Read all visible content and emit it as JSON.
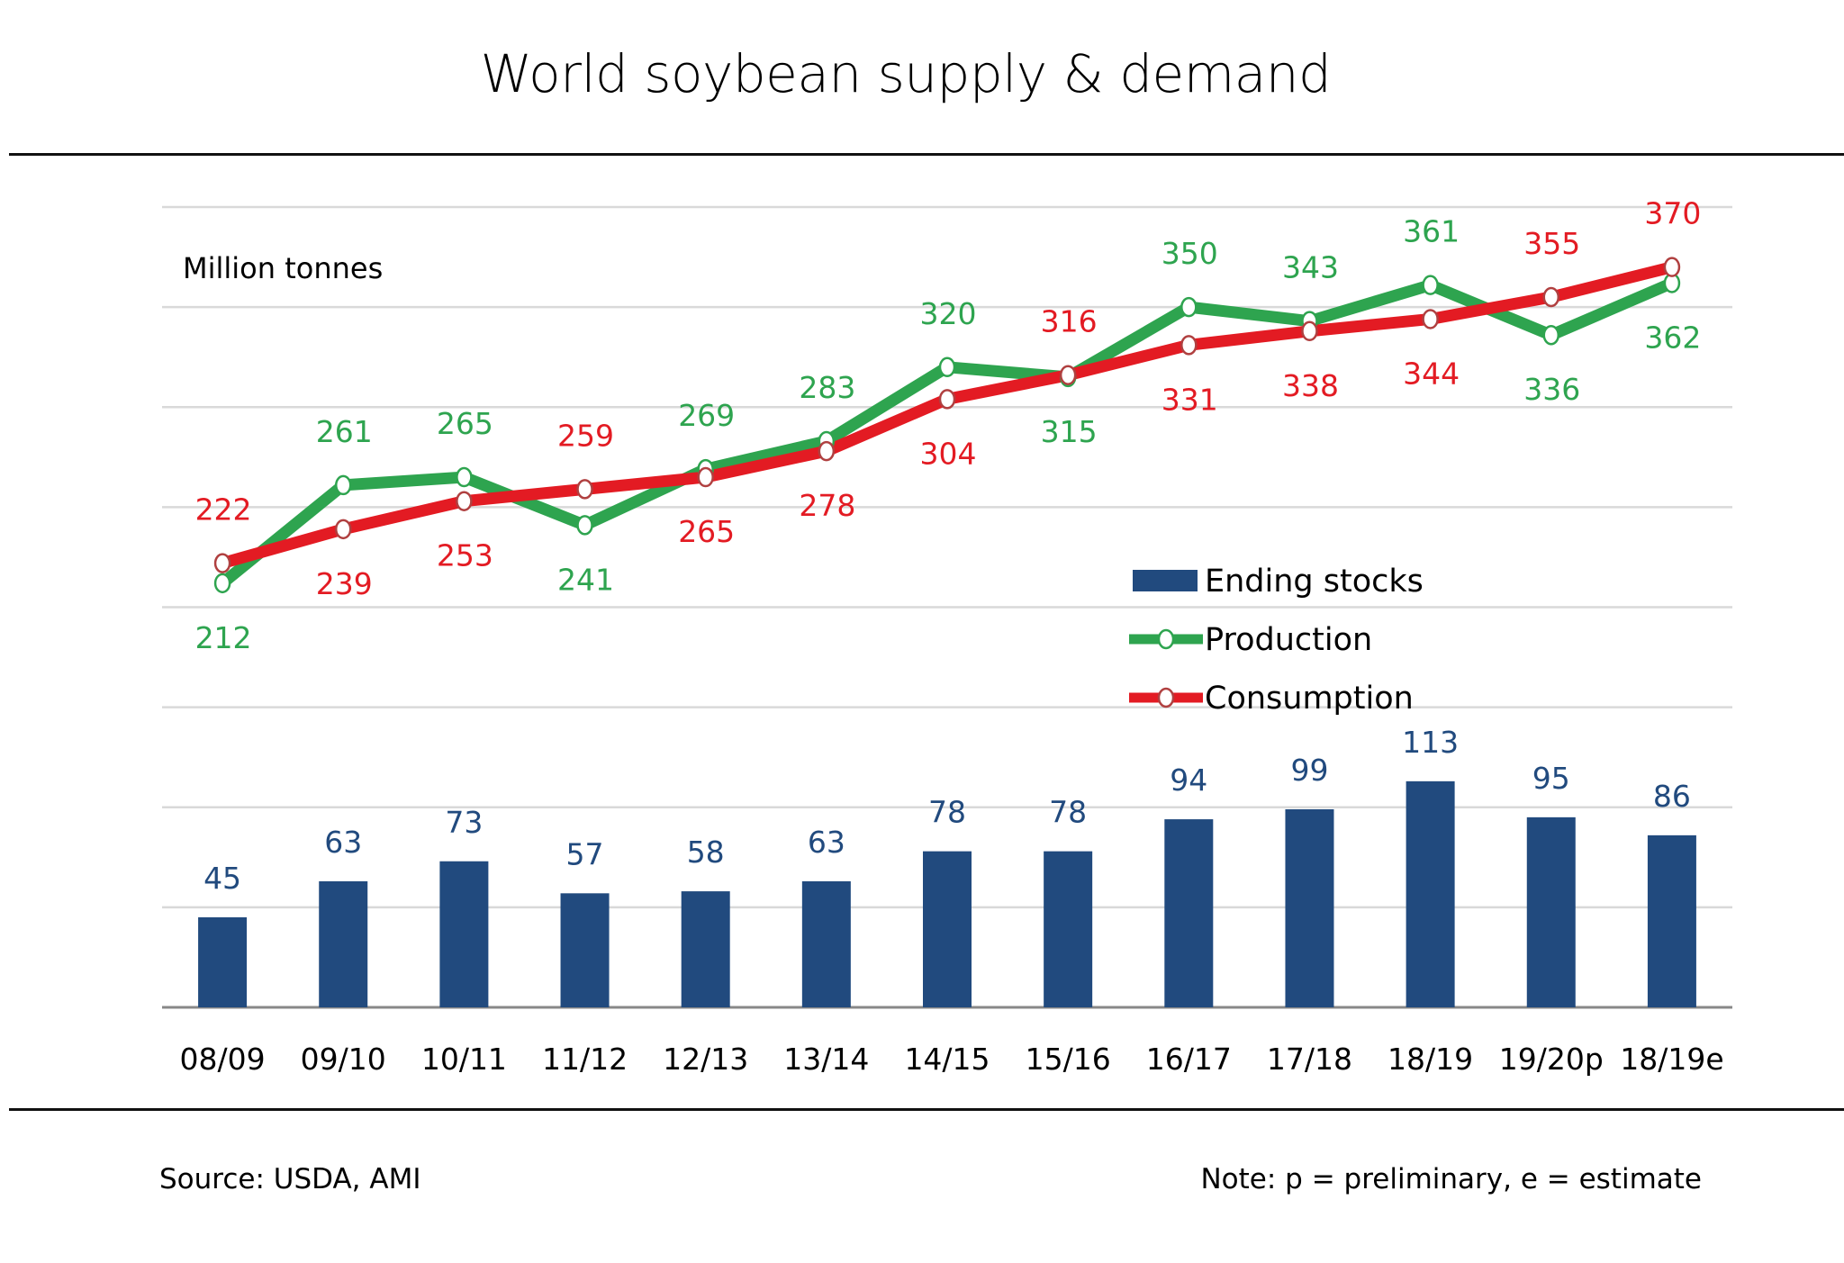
{
  "title": "World soybean supply & demand",
  "footer": {
    "source": "Source: USDA, AMI",
    "note": "Note: p = preliminary, e = estimate"
  },
  "colors": {
    "bars": "#214a7e",
    "production": "#2ea44f",
    "consumption": "#e31b23",
    "consumption_marker": "#b04040",
    "grid": "#d9d9d9",
    "axis": "#888888"
  },
  "chart_data": {
    "type": "bar+line",
    "title": "World soybean supply & demand",
    "ylabel": "Million tonnes",
    "xlabel": "",
    "ylim": [
      0,
      400
    ],
    "ystep": 50,
    "grid": true,
    "legend_position": "center-right",
    "categories": [
      "08/09",
      "09/10",
      "10/11",
      "11/12",
      "12/13",
      "13/14",
      "14/15",
      "15/16",
      "16/17",
      "17/18",
      "18/19",
      "19/20p",
      "18/19e"
    ],
    "series": [
      {
        "name": "Ending stocks",
        "type": "bar",
        "values": [
          45,
          63,
          73,
          57,
          58,
          63,
          78,
          78,
          94,
          99,
          113,
          95,
          86
        ]
      },
      {
        "name": "Production",
        "type": "line",
        "values": [
          212,
          261,
          265,
          241,
          269,
          283,
          320,
          315,
          350,
          343,
          361,
          336,
          362
        ],
        "label_positions": [
          "below",
          "above",
          "above",
          "below",
          "above",
          "above",
          "above",
          "below",
          "above",
          "above",
          "above",
          "below",
          "below"
        ]
      },
      {
        "name": "Consumption",
        "type": "line",
        "values": [
          222,
          239,
          253,
          259,
          265,
          278,
          304,
          316,
          331,
          338,
          344,
          355,
          370
        ],
        "label_positions": [
          "above",
          "below",
          "below",
          "above",
          "below",
          "below",
          "below",
          "above",
          "below",
          "below",
          "below",
          "above",
          "above"
        ]
      }
    ]
  }
}
